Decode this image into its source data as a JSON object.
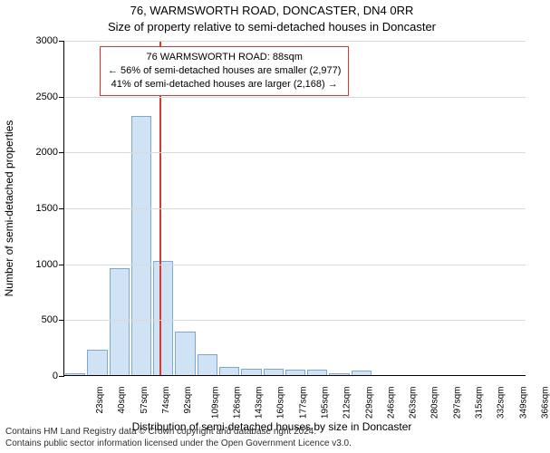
{
  "chart": {
    "type": "histogram",
    "title_line1": "76, WARMSWORTH ROAD, DONCASTER, DN4 0RR",
    "title_line2": "Size of property relative to semi-detached houses in Doncaster",
    "title_fontsize": 13,
    "ylabel": "Number of semi-detached properties",
    "xlabel": "Distribution of semi-detached houses by size in Doncaster",
    "label_fontsize": 12,
    "ylim": [
      0,
      3000
    ],
    "ytick_step": 500,
    "background_color": "#ffffff",
    "grid_color": "#d9d9d9",
    "axis_color": "#000000",
    "bar_fill": "#cfe3f5",
    "bar_border": "#7da9d1",
    "bar_width_ratio": 0.92,
    "categories": [
      "23sqm",
      "40sqm",
      "57sqm",
      "74sqm",
      "92sqm",
      "109sqm",
      "126sqm",
      "143sqm",
      "160sqm",
      "177sqm",
      "195sqm",
      "212sqm",
      "229sqm",
      "246sqm",
      "263sqm",
      "280sqm",
      "297sqm",
      "315sqm",
      "332sqm",
      "349sqm",
      "366sqm"
    ],
    "values": [
      20,
      230,
      960,
      2320,
      1020,
      390,
      190,
      75,
      60,
      55,
      45,
      45,
      20,
      40,
      0,
      0,
      0,
      0,
      0,
      0,
      0
    ],
    "marker": {
      "x_sqm": 88,
      "color": "#d63a2f",
      "width": 2
    },
    "annotation": {
      "border_color": "#d63a2f",
      "lines": [
        "76 WARMSWORTH ROAD: 88sqm",
        "← 56% of semi-detached houses are smaller (2,977)",
        "41% of semi-detached houses are larger (2,168) →"
      ]
    }
  },
  "attribution": {
    "line1": "Contains HM Land Registry data © Crown copyright and database right 2024.",
    "line2": "Contains public sector information licensed under the Open Government Licence v3.0."
  }
}
